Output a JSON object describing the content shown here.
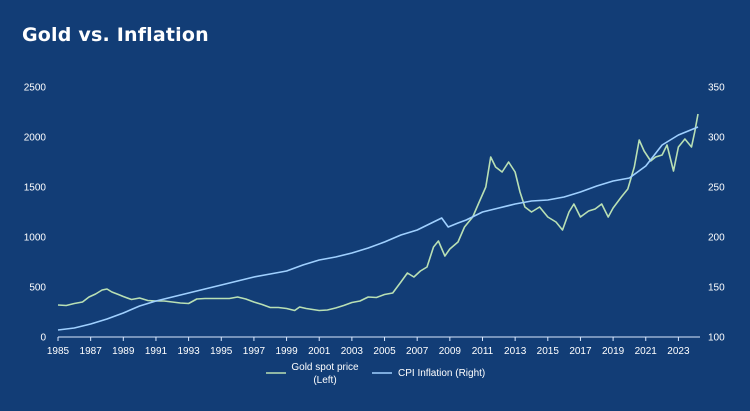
{
  "chart_data": {
    "type": "line",
    "title": "Gold vs. Inflation",
    "x_ticks": [
      "1985",
      "1987",
      "1989",
      "1991",
      "1993",
      "1995",
      "1997",
      "1999",
      "2001",
      "2003",
      "2005",
      "2007",
      "2009",
      "2011",
      "2013",
      "2015",
      "2017",
      "2019",
      "2021",
      "2023"
    ],
    "xlim": [
      1985,
      2024.2
    ],
    "y_left_ticks": [
      "0",
      "500",
      "1000",
      "1500",
      "2000",
      "2500"
    ],
    "y_left_lim": [
      0,
      2500
    ],
    "y_right_ticks": [
      "100",
      "150",
      "200",
      "250",
      "300",
      "350"
    ],
    "y_right_lim": [
      100,
      350
    ],
    "legend_position": "bottom-center",
    "colors": {
      "background": "#123d76",
      "gold": "#b9e0b4",
      "cpi": "#9fd0ff",
      "axis": "#dbe9ff"
    },
    "series": [
      {
        "name": "Gold spot price (Left)",
        "axis": "left",
        "color": "#b9e0b4",
        "points": [
          [
            1985.0,
            320
          ],
          [
            1985.5,
            315
          ],
          [
            1986.0,
            335
          ],
          [
            1986.5,
            350
          ],
          [
            1986.9,
            400
          ],
          [
            1987.3,
            430
          ],
          [
            1987.7,
            470
          ],
          [
            1988.0,
            480
          ],
          [
            1988.3,
            450
          ],
          [
            1988.7,
            425
          ],
          [
            1989.0,
            405
          ],
          [
            1989.5,
            375
          ],
          [
            1990.0,
            390
          ],
          [
            1990.5,
            365
          ],
          [
            1991.0,
            360
          ],
          [
            1991.5,
            360
          ],
          [
            1992.0,
            350
          ],
          [
            1992.5,
            340
          ],
          [
            1993.0,
            335
          ],
          [
            1993.5,
            380
          ],
          [
            1994.0,
            385
          ],
          [
            1994.5,
            385
          ],
          [
            1995.0,
            385
          ],
          [
            1995.5,
            385
          ],
          [
            1996.0,
            400
          ],
          [
            1996.5,
            380
          ],
          [
            1997.0,
            350
          ],
          [
            1997.5,
            325
          ],
          [
            1998.0,
            295
          ],
          [
            1998.5,
            295
          ],
          [
            1999.0,
            285
          ],
          [
            1999.5,
            265
          ],
          [
            1999.8,
            300
          ],
          [
            2000.2,
            285
          ],
          [
            2000.6,
            275
          ],
          [
            2001.0,
            265
          ],
          [
            2001.5,
            270
          ],
          [
            2002.0,
            290
          ],
          [
            2002.5,
            315
          ],
          [
            2003.0,
            345
          ],
          [
            2003.5,
            360
          ],
          [
            2004.0,
            400
          ],
          [
            2004.5,
            395
          ],
          [
            2005.0,
            425
          ],
          [
            2005.5,
            440
          ],
          [
            2006.0,
            550
          ],
          [
            2006.4,
            640
          ],
          [
            2006.8,
            600
          ],
          [
            2007.2,
            660
          ],
          [
            2007.6,
            700
          ],
          [
            2008.0,
            900
          ],
          [
            2008.3,
            960
          ],
          [
            2008.7,
            810
          ],
          [
            2009.0,
            880
          ],
          [
            2009.5,
            950
          ],
          [
            2009.9,
            1100
          ],
          [
            2010.4,
            1200
          ],
          [
            2010.8,
            1350
          ],
          [
            2011.2,
            1500
          ],
          [
            2011.5,
            1800
          ],
          [
            2011.8,
            1700
          ],
          [
            2012.2,
            1650
          ],
          [
            2012.6,
            1750
          ],
          [
            2013.0,
            1650
          ],
          [
            2013.3,
            1450
          ],
          [
            2013.6,
            1300
          ],
          [
            2014.0,
            1250
          ],
          [
            2014.5,
            1300
          ],
          [
            2015.0,
            1200
          ],
          [
            2015.5,
            1150
          ],
          [
            2015.9,
            1070
          ],
          [
            2016.3,
            1250
          ],
          [
            2016.6,
            1330
          ],
          [
            2017.0,
            1200
          ],
          [
            2017.5,
            1260
          ],
          [
            2017.9,
            1280
          ],
          [
            2018.3,
            1330
          ],
          [
            2018.7,
            1200
          ],
          [
            2019.0,
            1290
          ],
          [
            2019.5,
            1400
          ],
          [
            2019.9,
            1480
          ],
          [
            2020.3,
            1700
          ],
          [
            2020.6,
            1970
          ],
          [
            2020.9,
            1860
          ],
          [
            2021.3,
            1760
          ],
          [
            2021.6,
            1800
          ],
          [
            2022.0,
            1820
          ],
          [
            2022.3,
            1920
          ],
          [
            2022.7,
            1660
          ],
          [
            2023.0,
            1900
          ],
          [
            2023.4,
            1980
          ],
          [
            2023.8,
            1900
          ],
          [
            2024.0,
            2050
          ],
          [
            2024.2,
            2230
          ]
        ]
      },
      {
        "name": "CPI Inflation (Right)",
        "axis": "right",
        "color": "#9fd0ff",
        "points": [
          [
            1985.0,
            107
          ],
          [
            1986.0,
            109
          ],
          [
            1987.0,
            113
          ],
          [
            1988.0,
            118
          ],
          [
            1989.0,
            124
          ],
          [
            1990.0,
            131
          ],
          [
            1991.0,
            136
          ],
          [
            1992.0,
            140
          ],
          [
            1993.0,
            144
          ],
          [
            1994.0,
            148
          ],
          [
            1995.0,
            152
          ],
          [
            1996.0,
            156
          ],
          [
            1997.0,
            160
          ],
          [
            1998.0,
            163
          ],
          [
            1999.0,
            166
          ],
          [
            2000.0,
            172
          ],
          [
            2001.0,
            177
          ],
          [
            2002.0,
            180
          ],
          [
            2003.0,
            184
          ],
          [
            2004.0,
            189
          ],
          [
            2005.0,
            195
          ],
          [
            2006.0,
            202
          ],
          [
            2007.0,
            207
          ],
          [
            2008.0,
            215
          ],
          [
            2008.5,
            219
          ],
          [
            2008.9,
            210
          ],
          [
            2009.5,
            214
          ],
          [
            2010.0,
            217
          ],
          [
            2011.0,
            225
          ],
          [
            2012.0,
            229
          ],
          [
            2013.0,
            233
          ],
          [
            2014.0,
            236
          ],
          [
            2015.0,
            237
          ],
          [
            2016.0,
            240
          ],
          [
            2017.0,
            245
          ],
          [
            2018.0,
            251
          ],
          [
            2019.0,
            256
          ],
          [
            2020.0,
            259
          ],
          [
            2021.0,
            271
          ],
          [
            2022.0,
            292
          ],
          [
            2023.0,
            302
          ],
          [
            2024.2,
            310
          ]
        ]
      }
    ]
  },
  "legend": {
    "gold_line1": "Gold spot price",
    "gold_line2": "(Left)",
    "cpi_label": "CPI Inflation (Right)"
  }
}
